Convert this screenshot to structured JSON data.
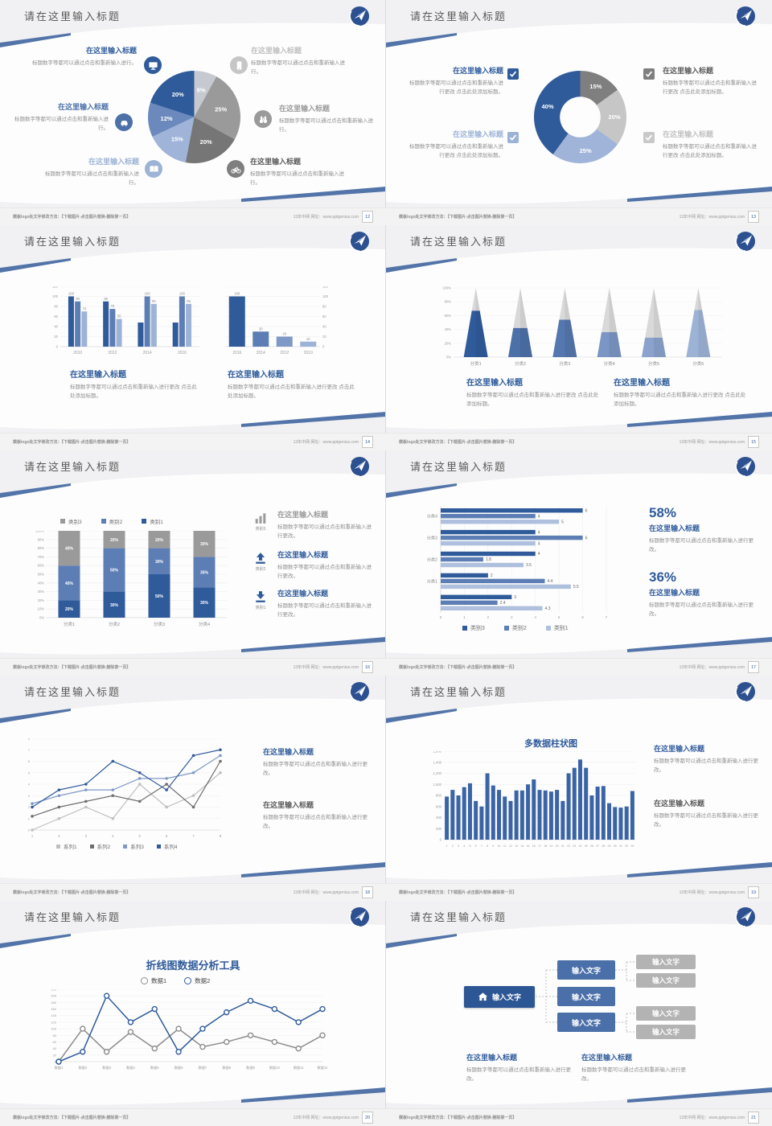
{
  "footer": {
    "left": "模板logo处文字修改方法：【下载图片-点击图片替换-删除第一页】",
    "right": "13年中网 网址：www.pptgenius.com"
  },
  "slides": [
    {
      "page": "12",
      "title": "请在这里输入标题",
      "callouts": [
        {
          "title": "在这里输入标题",
          "body": "标题数字等都可以通过点击和重新输入进行。",
          "title_color": "#2F5B9B",
          "icon": "monitor-icon",
          "icon_color": "#2F5B9B"
        },
        {
          "title": "在这里输入标题",
          "body": "标题数字等都可以通过点击和重新输入进行。",
          "title_color": "#4C70A8",
          "icon": "car-icon",
          "icon_color": "#4C70A8"
        },
        {
          "title": "在这里输入标题",
          "body": "标题数字等都可以通过点击和重新输入进行。",
          "title_color": "#9DB3D6",
          "icon": "book-icon",
          "icon_color": "#9DB3D6"
        },
        {
          "title": "在这里输入标题",
          "body": "标题数字等都可以通过点击和重新输入进行。",
          "title_color": "#BFBFBF",
          "icon": "phone-icon",
          "icon_color": "#C6C6C6"
        },
        {
          "title": "在这里输入标题",
          "body": "标题数字等都可以通过点击和重新输入进行。",
          "title_color": "#9A9A9A",
          "icon": "binoculars-icon",
          "icon_color": "#9A9A9A"
        },
        {
          "title": "在这里输入标题",
          "body": "标题数字等都可以通过点击和重新输入进行。",
          "title_color": "#595959",
          "icon": "bicycle-icon",
          "icon_color": "#7F7F7F"
        }
      ]
    },
    {
      "page": "13",
      "title": "请在这里输入标题",
      "callouts": [
        {
          "title": "在这里输入标题",
          "body": "标题数字等都可以通过点击和重新输入进行更改 点击此处添加标题。",
          "title_color": "#2F5B9B",
          "icon": "checkbox-icon",
          "icon_color": "#2F5B9B"
        },
        {
          "title": "在这里输入标题",
          "body": "标题数字等都可以通过点击和重新输入进行更改 点击此处添加标题。",
          "title_color": "#9DB3D6",
          "icon": "checkbox-icon",
          "icon_color": "#9DB3D6"
        },
        {
          "title": "在这里输入标题",
          "body": "标题数字等都可以通过点击和重新输入进行更改 点击此处添加标题。",
          "title_color": "#595959",
          "icon": "checkbox-icon",
          "icon_color": "#7F7F7F"
        },
        {
          "title": "在这里输入标题",
          "body": "标题数字等都可以通过点击和重新输入进行更改 点击此处添加标题。",
          "title_color": "#C0C0C0",
          "icon": "checkbox-icon",
          "icon_color": "#C9C9C9"
        }
      ]
    },
    {
      "page": "14",
      "title": "请在这里输入标题",
      "blocks": [
        {
          "title": "在这里输入标题",
          "body": "标题数字等都可以通过点击和重新输入进行更改 点击此处添加标题。"
        },
        {
          "title": "在这里输入标题",
          "body": "标题数字等都可以通过点击和重新输入进行更改 点击此处添加标题。"
        }
      ]
    },
    {
      "page": "15",
      "title": "请在这里输入标题",
      "blocks": [
        {
          "title": "在这里输入标题",
          "body": "标题数字等都可以通过点击和重新输入进行更改 点击此处添加标题。"
        },
        {
          "title": "在这里输入标题",
          "body": "标题数字等都可以通过点击和重新输入进行更改 点击此处添加标题。"
        }
      ]
    },
    {
      "page": "16",
      "title": "请在这里输入标题",
      "callouts": [
        {
          "label": "类别3",
          "title": "在这里输入标题",
          "body": "标题数字等都可以通过点击和重新输入进行更改。",
          "title_color": "#9A9A9A",
          "icon": "bar-chart-icon"
        },
        {
          "label": "类别2",
          "title": "在这里输入标题",
          "body": "标题数字等都可以通过点击和重新输入进行更改。",
          "title_color": "#2F5B9B",
          "icon": "upload-icon"
        },
        {
          "label": "类别1",
          "title": "在这里输入标题",
          "body": "标题数字等都可以通过点击和重新输入进行更改。",
          "title_color": "#2F5B9B",
          "icon": "download-icon"
        }
      ]
    },
    {
      "page": "17",
      "title": "请在这里输入标题",
      "stats": [
        {
          "value": "58%",
          "title": "在这里输入标题",
          "body": "标题数字等都可以通过点击和重新输入进行更改。"
        },
        {
          "value": "36%",
          "title": "在这里输入标题",
          "body": "标题数字等都可以通过点击和重新输入进行更改。"
        }
      ]
    },
    {
      "page": "18",
      "title": "请在这里输入标题",
      "blocks": [
        {
          "title": "在这里输入标题",
          "body": "标题数字等都可以通过点击和重新输入进行更改。",
          "title_color": "#2F5B9B"
        },
        {
          "title": "在这里输入标题",
          "body": "标题数字等都可以通过点击和重新输入进行更改。",
          "title_color": "#595959"
        }
      ]
    },
    {
      "page": "19",
      "title": "请在这里输入标题",
      "blocks": [
        {
          "title": "在这里输入标题",
          "body": "标题数字等都可以通过点击和重新输入进行更改。",
          "title_color": "#2F5B9B"
        },
        {
          "title": "在这里输入标题",
          "body": "标题数字等都可以通过点击和重新输入进行更改。",
          "title_color": "#595959"
        }
      ]
    },
    {
      "page": "20",
      "title": "请在这里输入标题"
    },
    {
      "page": "21",
      "title": "请在这里输入标题",
      "tree": {
        "root": "输入文字",
        "mids": [
          "输入文字",
          "输入文字",
          "输入文字"
        ],
        "leaves": [
          "输入文字",
          "输入文字",
          "输入文字",
          "输入文字"
        ]
      },
      "blocks": [
        {
          "title": "在这里输入标题",
          "body": "标题数字等都可以通过点击和重新输入进行更改。"
        },
        {
          "title": "在这里输入标题",
          "body": "标题数字等都可以通过点击和重新输入进行更改。"
        }
      ]
    }
  ],
  "chart_data": [
    {
      "slide": "12",
      "type": "pie",
      "values": [
        8,
        25,
        20,
        15,
        12,
        20
      ],
      "labels": [
        "8%",
        "25%",
        "20%",
        "15%",
        "12%",
        "20%"
      ],
      "colors": [
        "#C6C9D0",
        "#9A9A9A",
        "#767676",
        "#9FB4D8",
        "#6C89BD",
        "#2F5B9B"
      ]
    },
    {
      "slide": "13",
      "type": "donut",
      "values": [
        15,
        20,
        25,
        40
      ],
      "labels": [
        "15%",
        "20%",
        "25%",
        "40%"
      ],
      "colors": [
        "#7F7F7F",
        "#C6C6C6",
        "#9FB4D8",
        "#2F5B9B"
      ],
      "hole": 0.44
    },
    {
      "slide": "14",
      "type": "bar",
      "categories": [
        "2010",
        "2012",
        "2014",
        "2016"
      ],
      "series": [
        {
          "name": "series1",
          "color": "#2F5B9B",
          "values": [
            100,
            90,
            48,
            48
          ]
        },
        {
          "name": "series2",
          "color": "#5C7EB5",
          "values": [
            90,
            75,
            100,
            100
          ]
        },
        {
          "name": "series3",
          "color": "#9DB3D6",
          "values": [
            70,
            55,
            85,
            85
          ]
        }
      ],
      "value_labels": [
        [
          "100",
          "90",
          "70"
        ],
        [
          "90",
          "75",
          "55"
        ],
        [
          "",
          "100",
          "85"
        ],
        [
          "",
          "100",
          "85"
        ]
      ],
      "ylim": [
        0,
        120
      ],
      "ystep": 20
    },
    {
      "slide": "14",
      "type": "bar",
      "categories": [
        "2016",
        "2014",
        "2012",
        "2010"
      ],
      "values": [
        100,
        30,
        20,
        10
      ],
      "value_labels": [
        "100",
        "30",
        "20",
        "10"
      ],
      "bar_colors": [
        "#2F5B9B",
        "#5C7EB5",
        "#7E99C6",
        "#9DB3D6"
      ],
      "ylim": [
        0,
        120
      ],
      "ystep": 20,
      "yaxis": "right"
    },
    {
      "slide": "15",
      "type": "pyramid",
      "categories": [
        "分类1",
        "分类2",
        "分类3",
        "分类4",
        "分类5",
        "分类6"
      ],
      "values_pct": [
        67,
        42,
        54,
        36,
        28,
        68
      ],
      "colors": [
        "#2F5B9B",
        "#4C70A8",
        "#5577AF",
        "#7B95C4",
        "#8AA2CC",
        "#9DB3D6"
      ],
      "rest_color": "#D9D9D9",
      "ylim": [
        0,
        100
      ],
      "ystep": 20
    },
    {
      "slide": "16",
      "type": "stacked-bar",
      "categories": [
        "分类1",
        "分类2",
        "分类3",
        "分类4"
      ],
      "series": [
        {
          "name": "类别1",
          "color": "#2F5B9B",
          "values": [
            20,
            30,
            50,
            35
          ]
        },
        {
          "name": "类别2",
          "color": "#5C7EB5",
          "values": [
            40,
            50,
            30,
            35
          ]
        },
        {
          "name": "类别3",
          "color": "#9A9A9A",
          "values": [
            40,
            20,
            20,
            30
          ]
        }
      ],
      "ylim": [
        0,
        100
      ],
      "ystep": 10,
      "legend_order": [
        "类别3",
        "类别2",
        "类别1"
      ]
    },
    {
      "slide": "17",
      "type": "hbar",
      "categories": [
        "分类4",
        "分类3",
        "分类2",
        "分类1",
        ""
      ],
      "series": [
        {
          "name": "类别3",
          "color": "#2F5B9B",
          "values": [
            6,
            4,
            4,
            2,
            3
          ]
        },
        {
          "name": "类别2",
          "color": "#5C7EB5",
          "values": [
            4,
            6,
            1.8,
            4.4,
            2.4
          ]
        },
        {
          "name": "类别1",
          "color": "#AEC0DD",
          "values": [
            5,
            4,
            3.5,
            5.5,
            4.3
          ]
        }
      ],
      "xlim": [
        0,
        7
      ],
      "xstep": 1
    },
    {
      "slide": "18",
      "type": "line",
      "x": [
        1,
        2,
        3,
        4,
        5,
        6,
        7,
        8
      ],
      "series": [
        {
          "name": "系列1",
          "color": "#BFBFBF",
          "values": [
            0,
            1,
            2,
            1,
            4,
            2,
            3,
            5
          ]
        },
        {
          "name": "系列2",
          "color": "#6E6E6E",
          "values": [
            1.2,
            2,
            2.5,
            3,
            2.5,
            4,
            2,
            6
          ]
        },
        {
          "name": "系列3",
          "color": "#7E99C6",
          "values": [
            2.3,
            3,
            3.5,
            3.5,
            4.5,
            4.5,
            5,
            6.5
          ]
        },
        {
          "name": "系列4",
          "color": "#2F5B9B",
          "values": [
            2,
            3.5,
            4,
            6,
            5,
            3.5,
            6.5,
            7
          ]
        }
      ],
      "ylim": [
        0,
        8
      ],
      "ystep": 1
    },
    {
      "slide": "19",
      "type": "bar",
      "title": "多数据柱状图",
      "categories": [
        "1",
        "2",
        "3",
        "4",
        "5",
        "6",
        "7",
        "8",
        "9",
        "10",
        "11",
        "12",
        "13",
        "14",
        "15",
        "16",
        "17",
        "18",
        "19",
        "20",
        "21",
        "22",
        "23",
        "24",
        "25",
        "26",
        "27",
        "28",
        "29",
        "30",
        "31",
        "32",
        "33"
      ],
      "values": [
        780,
        900,
        800,
        950,
        1020,
        700,
        600,
        1200,
        980,
        900,
        780,
        700,
        890,
        890,
        1000,
        1090,
        900,
        890,
        870,
        900,
        700,
        1200,
        1300,
        1450,
        1300,
        800,
        960,
        970,
        660,
        590,
        580,
        600,
        880
      ],
      "color": "#3A64A5",
      "ylim": [
        0,
        1600
      ],
      "ystep": 200
    },
    {
      "slide": "20",
      "type": "line",
      "title": "折线图数据分析工具",
      "x": [
        "数据1",
        "数据2",
        "数据3",
        "数据4",
        "数据5",
        "数据6",
        "数据7",
        "数据8",
        "数据9",
        "数据10",
        "数据11",
        "数据12"
      ],
      "series": [
        {
          "name": "数据1",
          "color": "#8C8C8C",
          "values": [
            0,
            100,
            30,
            90,
            40,
            100,
            45,
            60,
            80,
            60,
            40,
            80
          ]
        },
        {
          "name": "数据2",
          "color": "#2F5B9B",
          "values": [
            0,
            30,
            200,
            120,
            160,
            30,
            100,
            150,
            185,
            160,
            120,
            160
          ]
        }
      ],
      "ylim": [
        0,
        220
      ],
      "ystep": 20
    }
  ]
}
